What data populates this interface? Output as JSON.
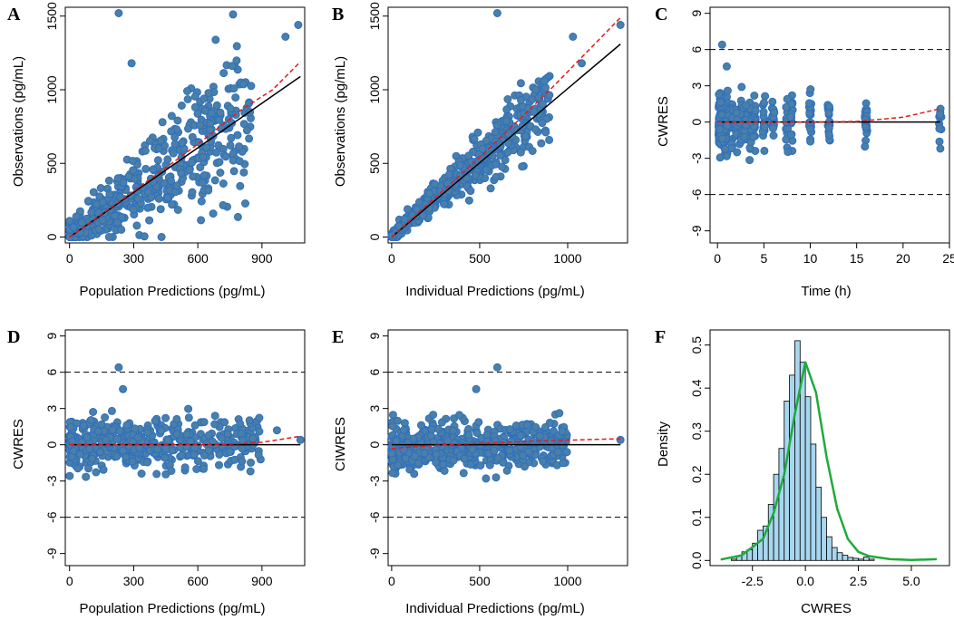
{
  "chart_data": [
    {
      "panel": "A",
      "type": "scatter",
      "xlabel": "Population Predictions (pg/mL)",
      "ylabel": "Observations (pg/mL)",
      "xlim": [
        -20,
        1100
      ],
      "ylim": [
        -40,
        1560
      ],
      "xticks": [
        0,
        300,
        600,
        900
      ],
      "yticks": [
        0,
        500,
        1000,
        1500
      ],
      "x_min": 0,
      "x_max": 1080,
      "identity_line": [
        [
          0,
          0
        ],
        [
          1080,
          1090
        ]
      ],
      "loess_line": [
        [
          0,
          0
        ],
        [
          300,
          310
        ],
        [
          600,
          630
        ],
        [
          800,
          860
        ],
        [
          950,
          1000
        ],
        [
          1080,
          1190
        ]
      ],
      "outliers": [
        [
          230,
          1520
        ],
        [
          290,
          1180
        ],
        [
          1070,
          1440
        ],
        [
          1010,
          1360
        ]
      ]
    },
    {
      "panel": "B",
      "type": "scatter",
      "xlabel": "Individual Predictions (pg/mL)",
      "ylabel": "Observations (pg/mL)",
      "xlim": [
        -20,
        1340
      ],
      "ylim": [
        -40,
        1560
      ],
      "xticks": [
        0,
        500,
        1000
      ],
      "yticks": [
        0,
        500,
        1000,
        1500
      ],
      "x_min": 0,
      "x_max": 1300,
      "identity_line": [
        [
          0,
          0
        ],
        [
          1300,
          1310
        ]
      ],
      "loess_line": [
        [
          0,
          0
        ],
        [
          500,
          540
        ],
        [
          900,
          1000
        ],
        [
          1300,
          1490
        ]
      ],
      "outliers": [
        [
          600,
          1520
        ],
        [
          1300,
          1440
        ],
        [
          1030,
          1360
        ],
        [
          1080,
          1180
        ]
      ]
    },
    {
      "panel": "C",
      "type": "scatter",
      "xlabel": "Time (h)",
      "ylabel": "CWRES",
      "xlim": [
        -0.8,
        25
      ],
      "ylim": [
        -10,
        9.5
      ],
      "xticks": [
        0,
        5,
        10,
        15,
        20,
        25
      ],
      "yticks": [
        -9,
        -6,
        -3,
        0,
        3,
        6,
        9
      ],
      "ref_lines": [
        -6,
        6
      ],
      "x_min": 0,
      "x_max": 24,
      "zero_line": [
        [
          0,
          0
        ],
        [
          24,
          0
        ]
      ],
      "loess_line": [
        [
          0,
          0
        ],
        [
          10,
          0
        ],
        [
          15,
          0.05
        ],
        [
          20,
          0.4
        ],
        [
          24,
          1.1
        ]
      ],
      "time_points": [
        0.25,
        0.5,
        0.75,
        1,
        1.5,
        2,
        2.5,
        3,
        3.5,
        4,
        5,
        6,
        7.5,
        8,
        10,
        12,
        16,
        24
      ],
      "outliers": [
        [
          0.5,
          6.4
        ],
        [
          1,
          4.6
        ]
      ]
    },
    {
      "panel": "D",
      "type": "scatter",
      "xlabel": "Population Predictions (pg/mL)",
      "ylabel": "CWRES",
      "xlim": [
        -20,
        1100
      ],
      "ylim": [
        -10,
        9.5
      ],
      "xticks": [
        0,
        300,
        600,
        900
      ],
      "yticks": [
        -9,
        -6,
        -3,
        0,
        3,
        6,
        9
      ],
      "ref_lines": [
        -6,
        6
      ],
      "x_min": 0,
      "x_max": 1080,
      "zero_line": [
        [
          0,
          0
        ],
        [
          1080,
          0
        ]
      ],
      "loess_line": [
        [
          0,
          0
        ],
        [
          700,
          0
        ],
        [
          900,
          0.2
        ],
        [
          1080,
          0.7
        ]
      ],
      "outliers": [
        [
          230,
          6.4
        ],
        [
          250,
          4.6
        ],
        [
          1080,
          0.4
        ],
        [
          970,
          1.2
        ]
      ]
    },
    {
      "panel": "E",
      "type": "scatter",
      "xlabel": "Individual Predictions (pg/mL)",
      "ylabel": "CIWRES",
      "xlim": [
        -20,
        1340
      ],
      "ylim": [
        -10,
        9.5
      ],
      "xticks": [
        0,
        500,
        1000
      ],
      "yticks": [
        -9,
        -6,
        -3,
        0,
        3,
        6,
        9
      ],
      "ref_lines": [
        -6,
        6
      ],
      "x_min": 0,
      "x_max": 1300,
      "zero_line": [
        [
          0,
          0
        ],
        [
          1300,
          0
        ]
      ],
      "loess_line": [
        [
          0,
          -0.3
        ],
        [
          300,
          0
        ],
        [
          800,
          0.3
        ],
        [
          1300,
          0.5
        ]
      ],
      "outliers": [
        [
          600,
          6.4
        ],
        [
          480,
          4.6
        ],
        [
          1300,
          0.4
        ]
      ]
    },
    {
      "panel": "F",
      "type": "bar",
      "xlabel": "CWRES",
      "ylabel": "Density",
      "xlim": [
        -4.5,
        6.8
      ],
      "ylim": [
        -0.012,
        0.535
      ],
      "xticks": [
        -2.5,
        0.0,
        2.5,
        5.0
      ],
      "xtick_labels": [
        "-2.5",
        "0.0",
        "2.5",
        "5.0"
      ],
      "yticks": [
        0.0,
        0.1,
        0.2,
        0.3,
        0.4,
        0.5
      ],
      "ytick_labels": [
        "0.0",
        "0.1",
        "0.2",
        "0.3",
        "0.4",
        "0.5"
      ],
      "bin_width": 0.25,
      "bin_start": -3.5,
      "values": [
        0.003,
        0.01,
        0.02,
        0.025,
        0.04,
        0.07,
        0.08,
        0.13,
        0.2,
        0.26,
        0.37,
        0.43,
        0.51,
        0.46,
        0.38,
        0.27,
        0.17,
        0.1,
        0.055,
        0.03,
        0.018,
        0.012,
        0.007,
        0.005,
        0.003,
        0.008,
        0.003
      ],
      "density_curve": [
        [
          -4,
          0.002
        ],
        [
          -3,
          0.012
        ],
        [
          -2,
          0.05
        ],
        [
          -1.5,
          0.11
        ],
        [
          -1,
          0.2
        ],
        [
          -0.5,
          0.34
        ],
        [
          0,
          0.46
        ],
        [
          0.5,
          0.39
        ],
        [
          1,
          0.24
        ],
        [
          1.5,
          0.12
        ],
        [
          2,
          0.05
        ],
        [
          2.5,
          0.02
        ],
        [
          3,
          0.01
        ],
        [
          4,
          0.003
        ],
        [
          5,
          0.001
        ],
        [
          6.2,
          0.003
        ]
      ]
    }
  ],
  "colors": {
    "point_fill": "#4a7fa7",
    "point_stroke": "#2e6fbf",
    "loess": "#e8191a",
    "identity": "#000000",
    "hist_fill": "#a8d6ee",
    "density": "#1faa3a"
  }
}
